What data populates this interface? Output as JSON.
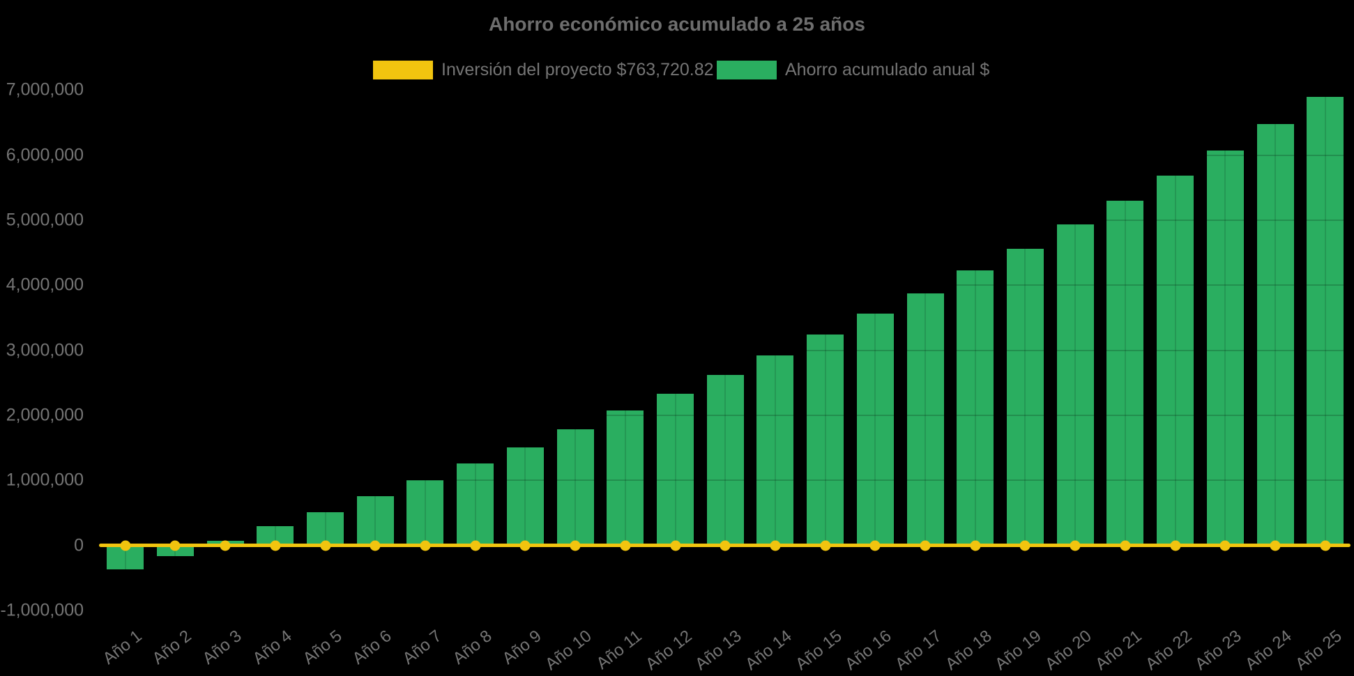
{
  "chart_data": {
    "type": "bar",
    "title": "Ahorro económico acumulado a 25 años",
    "categories": [
      "Año 1",
      "Año 2",
      "Año 3",
      "Año 4",
      "Año 5",
      "Año 6",
      "Año 7",
      "Año 8",
      "Año 9",
      "Año 10",
      "Año 11",
      "Año 12",
      "Año 13",
      "Año 14",
      "Año 15",
      "Año 16",
      "Año 17",
      "Año 18",
      "Año 19",
      "Año 20",
      "Año 21",
      "Año 22",
      "Año 23",
      "Año 24",
      "Año 25"
    ],
    "series": [
      {
        "name": "Inversión del proyecto $763,720.82",
        "type": "line",
        "color": "#f1c40f",
        "values": [
          0,
          0,
          0,
          0,
          0,
          0,
          0,
          0,
          0,
          0,
          0,
          0,
          0,
          0,
          0,
          0,
          0,
          0,
          0,
          0,
          0,
          0,
          0,
          0,
          0
        ]
      },
      {
        "name": "Ahorro acumulado anual $",
        "type": "bar",
        "color": "#2aae60",
        "values": [
          -365000,
          -165000,
          65000,
          295000,
          510000,
          760000,
          1000000,
          1255000,
          1505000,
          1785000,
          2070000,
          2335000,
          2620000,
          2925000,
          3245000,
          3560000,
          3870000,
          4225000,
          4560000,
          4930000,
          5295000,
          5680000,
          6070000,
          6475000,
          6890000
        ]
      }
    ],
    "y_axis": {
      "tick_labels": [
        "7,000,000",
        "6,000,000",
        "5,000,000",
        "4,000,000",
        "3,000,000",
        "2,000,000",
        "1,000,000",
        "0",
        "-1,000,000"
      ],
      "tick_values": [
        7000000,
        6000000,
        5000000,
        4000000,
        3000000,
        2000000,
        1000000,
        0,
        -1000000
      ],
      "ylim": [
        -1000000,
        7000000
      ]
    },
    "legend_position": "top",
    "grid": "subtle dark lines drawn over bars only",
    "background_color": "#000000",
    "text_color": "#757575"
  }
}
